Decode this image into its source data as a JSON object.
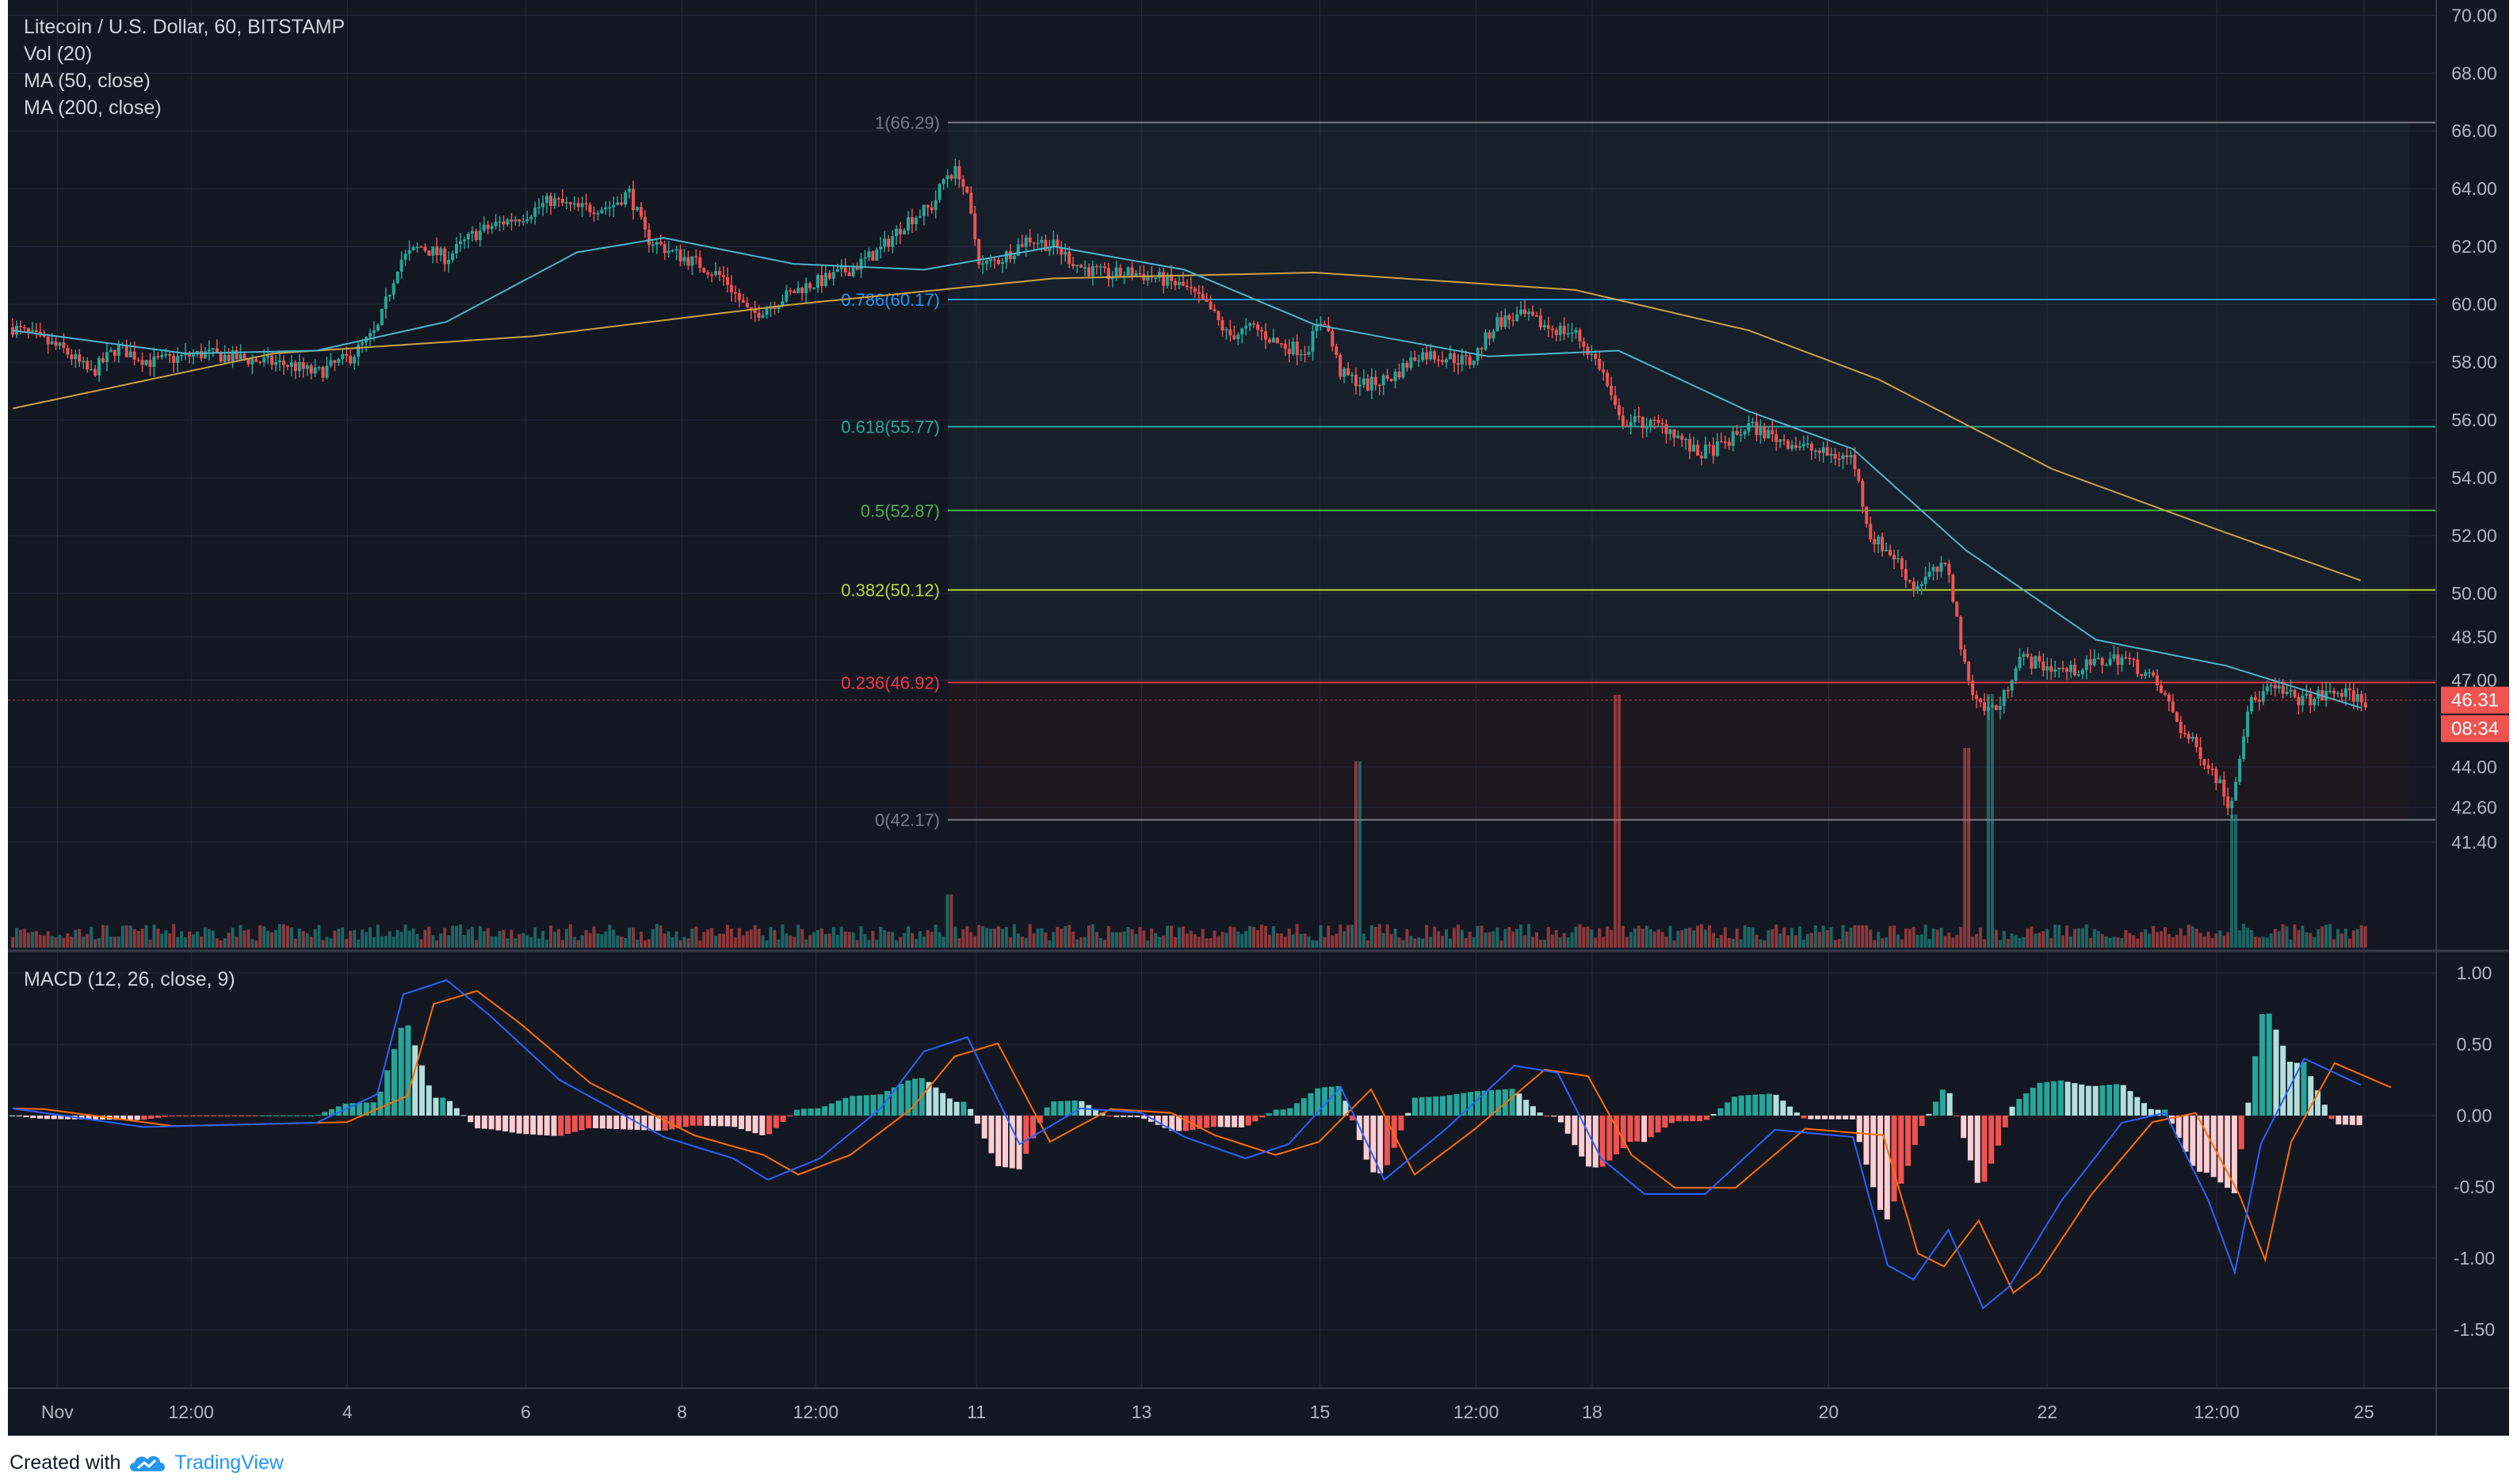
{
  "header": {
    "symbol": "Litecoin / U.S. Dollar, 60, BITSTAMP",
    "indicators": [
      "Vol (20)",
      "MA (50, close)",
      "MA (200, close)"
    ]
  },
  "macd_label": "MACD (12, 26, close, 9)",
  "footer": {
    "created_with": "Created with",
    "brand": "TradingView",
    "logo_icon": "tradingview-cloud-icon"
  },
  "colors": {
    "background": "#131722",
    "grid": "#262b3c",
    "up": "#26a69a",
    "down": "#ef5350",
    "ma50": "#4fb3c8",
    "ma200": "#c9a24a",
    "macd": "#2962ff",
    "signal": "#ff6d00"
  },
  "price_axis": {
    "ticks": [
      "70.00",
      "68.00",
      "66.00",
      "64.00",
      "62.00",
      "60.00",
      "58.00",
      "56.00",
      "54.00",
      "52.00",
      "50.00",
      "48.50",
      "47.00",
      "44.00",
      "42.60",
      "41.40"
    ]
  },
  "last_price": {
    "price": "46.31",
    "timer": "08:34"
  },
  "macd_axis": {
    "ticks": [
      "1.00",
      "0.50",
      "0.00",
      "-0.50",
      "-1.00",
      "-1.50"
    ]
  },
  "time_axis": {
    "labels": [
      "Nov",
      "12:00",
      "4",
      "6",
      "8",
      "12:00",
      "11",
      "13",
      "15",
      "12:00",
      "18",
      "20",
      "22",
      "12:00",
      "25"
    ]
  },
  "fib_levels": [
    {
      "label": "1(66.29)",
      "price": 66.29,
      "color": "#787b86"
    },
    {
      "label": "0.786(60.17)",
      "price": 60.17,
      "color": "#2196f3"
    },
    {
      "label": "0.618(55.77)",
      "price": 55.77,
      "color": "#26a69a"
    },
    {
      "label": "0.5(52.87)",
      "price": 52.87,
      "color": "#4caf50"
    },
    {
      "label": "0.382(50.12)",
      "price": 50.12,
      "color": "#b5d334"
    },
    {
      "label": "0.236(46.92)",
      "price": 46.92,
      "color": "#f23645"
    },
    {
      "label": "0(42.17)",
      "price": 42.17,
      "color": "#787b86"
    }
  ],
  "chart_data": {
    "type": "candlestick",
    "title": "Litecoin / U.S. Dollar, 60, BITSTAMP",
    "interval": "60",
    "x_range": [
      "Nov 1",
      "Nov 26"
    ],
    "price_range": [
      40.6,
      70.2
    ],
    "price_path": [
      [
        0,
        59.2
      ],
      [
        0.3,
        58.8
      ],
      [
        0.6,
        58.4
      ],
      [
        0.9,
        57.6
      ],
      [
        1.2,
        58.5
      ],
      [
        1.6,
        58.0
      ],
      [
        2.2,
        58.3
      ],
      [
        2.7,
        58.1
      ],
      [
        3.2,
        57.9
      ],
      [
        3.5,
        57.6
      ],
      [
        3.9,
        58.2
      ],
      [
        4.2,
        59.1
      ],
      [
        4.45,
        61.5
      ],
      [
        4.7,
        62.0
      ],
      [
        5.0,
        61.6
      ],
      [
        5.3,
        62.4
      ],
      [
        5.6,
        62.8
      ],
      [
        5.9,
        63.1
      ],
      [
        6.2,
        63.6
      ],
      [
        6.5,
        63.3
      ],
      [
        6.9,
        63.4
      ],
      [
        7.1,
        63.9
      ],
      [
        7.3,
        62.3
      ],
      [
        7.6,
        61.8
      ],
      [
        7.9,
        61.4
      ],
      [
        8.2,
        60.9
      ],
      [
        8.5,
        59.6
      ],
      [
        8.8,
        60.1
      ],
      [
        9.1,
        60.6
      ],
      [
        9.4,
        60.9
      ],
      [
        9.7,
        61.3
      ],
      [
        10.0,
        61.9
      ],
      [
        10.3,
        62.9
      ],
      [
        10.6,
        63.4
      ],
      [
        10.75,
        64.5
      ],
      [
        10.9,
        64.6
      ],
      [
        11.0,
        63.6
      ],
      [
        11.15,
        61.3
      ],
      [
        11.4,
        61.6
      ],
      [
        11.7,
        62.3
      ],
      [
        12.0,
        62.0
      ],
      [
        12.3,
        61.3
      ],
      [
        12.6,
        61.0
      ],
      [
        12.9,
        61.1
      ],
      [
        13.2,
        60.9
      ],
      [
        13.5,
        60.6
      ],
      [
        13.8,
        59.8
      ],
      [
        14.0,
        58.9
      ],
      [
        14.3,
        59.2
      ],
      [
        14.6,
        58.6
      ],
      [
        14.9,
        58.4
      ],
      [
        15.1,
        59.6
      ],
      [
        15.3,
        57.6
      ],
      [
        15.6,
        57.2
      ],
      [
        15.9,
        57.5
      ],
      [
        16.2,
        58.3
      ],
      [
        16.5,
        58.2
      ],
      [
        16.8,
        58.0
      ],
      [
        17.1,
        59.4
      ],
      [
        17.4,
        59.6
      ],
      [
        17.7,
        59.2
      ],
      [
        18.0,
        59.0
      ],
      [
        18.3,
        57.8
      ],
      [
        18.5,
        56.0
      ],
      [
        18.8,
        55.9
      ],
      [
        19.1,
        55.7
      ],
      [
        19.4,
        54.8
      ],
      [
        19.7,
        55.1
      ],
      [
        20.0,
        55.8
      ],
      [
        20.3,
        55.4
      ],
      [
        20.6,
        55.1
      ],
      [
        20.9,
        54.8
      ],
      [
        21.2,
        54.7
      ],
      [
        21.4,
        52.0
      ],
      [
        21.7,
        51.2
      ],
      [
        21.9,
        50.2
      ],
      [
        22.1,
        50.7
      ],
      [
        22.3,
        50.9
      ],
      [
        22.5,
        47.2
      ],
      [
        22.7,
        46.0
      ],
      [
        22.9,
        46.1
      ],
      [
        23.1,
        47.8
      ],
      [
        23.4,
        47.5
      ],
      [
        23.7,
        47.3
      ],
      [
        24.0,
        47.6
      ],
      [
        24.3,
        47.8
      ],
      [
        24.6,
        47.2
      ],
      [
        24.8,
        46.4
      ],
      [
        25.0,
        45.2
      ],
      [
        25.2,
        44.5
      ],
      [
        25.4,
        43.6
      ],
      [
        25.55,
        42.6
      ],
      [
        25.75,
        46.1
      ],
      [
        26.0,
        46.7
      ],
      [
        26.4,
        46.3
      ],
      [
        26.8,
        46.6
      ],
      [
        27.1,
        46.3
      ]
    ],
    "ma50_path": [
      [
        0,
        59.1
      ],
      [
        2,
        58.3
      ],
      [
        3.5,
        58.4
      ],
      [
        5,
        59.4
      ],
      [
        6.5,
        61.8
      ],
      [
        7.5,
        62.3
      ],
      [
        9,
        61.4
      ],
      [
        10.5,
        61.2
      ],
      [
        12,
        62.0
      ],
      [
        13.5,
        61.2
      ],
      [
        15,
        59.3
      ],
      [
        17,
        58.2
      ],
      [
        18.5,
        58.4
      ],
      [
        20,
        56.3
      ],
      [
        21.2,
        55.0
      ],
      [
        22.5,
        51.5
      ],
      [
        24,
        48.4
      ],
      [
        25.5,
        47.5
      ],
      [
        27.1,
        46.0
      ]
    ],
    "ma200_path": [
      [
        0,
        56.4
      ],
      [
        3,
        58.3
      ],
      [
        6,
        58.9
      ],
      [
        9,
        60.0
      ],
      [
        12,
        60.9
      ],
      [
        15,
        61.1
      ],
      [
        18,
        60.5
      ],
      [
        20,
        59.1
      ],
      [
        21.5,
        57.4
      ],
      [
        23.5,
        54.3
      ],
      [
        25.5,
        52.1
      ],
      [
        27.1,
        50.4
      ]
    ],
    "volume_spikes": [
      [
        10.8,
        0.4
      ],
      [
        15.5,
        1.4
      ],
      [
        18.5,
        1.9
      ],
      [
        22.5,
        1.5
      ],
      [
        22.8,
        2.0
      ],
      [
        25.6,
        1.0
      ]
    ],
    "macd_path": [
      [
        0,
        0.05
      ],
      [
        1.5,
        -0.08
      ],
      [
        3.5,
        -0.05
      ],
      [
        4.2,
        0.15
      ],
      [
        4.5,
        0.85
      ],
      [
        5.0,
        0.95
      ],
      [
        5.5,
        0.7
      ],
      [
        6.3,
        0.25
      ],
      [
        7.5,
        -0.15
      ],
      [
        8.3,
        -0.3
      ],
      [
        8.7,
        -0.45
      ],
      [
        9.3,
        -0.3
      ],
      [
        10.0,
        0.05
      ],
      [
        10.5,
        0.45
      ],
      [
        11.0,
        0.55
      ],
      [
        11.6,
        -0.2
      ],
      [
        12.3,
        0.05
      ],
      [
        13.0,
        0.02
      ],
      [
        13.5,
        -0.15
      ],
      [
        14.2,
        -0.3
      ],
      [
        14.7,
        -0.2
      ],
      [
        15.3,
        0.2
      ],
      [
        15.8,
        -0.45
      ],
      [
        16.5,
        -0.1
      ],
      [
        17.3,
        0.35
      ],
      [
        17.8,
        0.3
      ],
      [
        18.3,
        -0.3
      ],
      [
        18.8,
        -0.55
      ],
      [
        19.5,
        -0.55
      ],
      [
        20.3,
        -0.1
      ],
      [
        21.2,
        -0.15
      ],
      [
        21.6,
        -1.05
      ],
      [
        21.9,
        -1.15
      ],
      [
        22.3,
        -0.8
      ],
      [
        22.7,
        -1.35
      ],
      [
        23.0,
        -1.2
      ],
      [
        23.6,
        -0.6
      ],
      [
        24.3,
        -0.05
      ],
      [
        24.8,
        0.02
      ],
      [
        25.3,
        -0.6
      ],
      [
        25.6,
        -1.1
      ],
      [
        25.9,
        -0.2
      ],
      [
        26.4,
        0.4
      ],
      [
        27.1,
        0.2
      ]
    ]
  }
}
